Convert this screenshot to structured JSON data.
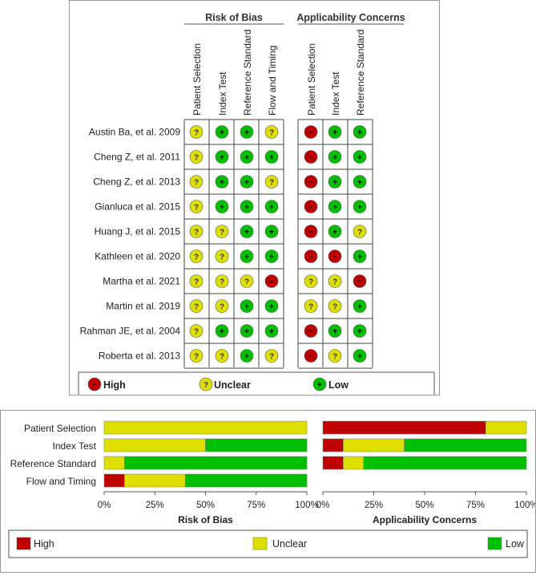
{
  "colors": {
    "high": "#c00000",
    "unclear": "#e0e000",
    "low": "#00c000",
    "grid": "#777777"
  },
  "symbols": {
    "high": "−",
    "unclear": "?",
    "low": "+"
  },
  "group_titles": [
    "Risk of Bias",
    "Applicability Concerns"
  ],
  "rob_columns": [
    "Patient Selection",
    "Index Test",
    "Reference Standard",
    "Flow and Timing"
  ],
  "ac_columns": [
    "Patient Selection",
    "Index Test",
    "Reference Standard"
  ],
  "studies": [
    {
      "name": "Austin Ba, et al. 2009",
      "rob": [
        "unclear",
        "low",
        "low",
        "unclear"
      ],
      "ac": [
        "high",
        "low",
        "low"
      ]
    },
    {
      "name": "Cheng Z, et al. 2011",
      "rob": [
        "unclear",
        "low",
        "low",
        "low"
      ],
      "ac": [
        "high",
        "low",
        "low"
      ]
    },
    {
      "name": "Cheng Z, et al. 2013",
      "rob": [
        "unclear",
        "low",
        "low",
        "unclear"
      ],
      "ac": [
        "high",
        "low",
        "low"
      ]
    },
    {
      "name": "Gianluca et al. 2015",
      "rob": [
        "unclear",
        "low",
        "low",
        "low"
      ],
      "ac": [
        "high",
        "low",
        "low"
      ]
    },
    {
      "name": "Huang J, et al. 2015",
      "rob": [
        "unclear",
        "unclear",
        "low",
        "low"
      ],
      "ac": [
        "high",
        "low",
        "unclear"
      ]
    },
    {
      "name": "Kathleen et al. 2020",
      "rob": [
        "unclear",
        "unclear",
        "low",
        "low"
      ],
      "ac": [
        "high",
        "high",
        "low"
      ]
    },
    {
      "name": "Martha et al. 2021",
      "rob": [
        "unclear",
        "unclear",
        "unclear",
        "high"
      ],
      "ac": [
        "unclear",
        "unclear",
        "high"
      ]
    },
    {
      "name": "Martin et al. 2019",
      "rob": [
        "unclear",
        "unclear",
        "low",
        "low"
      ],
      "ac": [
        "unclear",
        "unclear",
        "low"
      ]
    },
    {
      "name": "Rahman JE, et al. 2004",
      "rob": [
        "unclear",
        "low",
        "low",
        "low"
      ],
      "ac": [
        "high",
        "low",
        "low"
      ]
    },
    {
      "name": "Roberta et al. 2013",
      "rob": [
        "unclear",
        "unclear",
        "low",
        "unclear"
      ],
      "ac": [
        "high",
        "unclear",
        "low"
      ]
    }
  ],
  "legend": {
    "high": "High",
    "unclear": "Unclear",
    "low": "Low"
  },
  "chart_data": [
    {
      "type": "bar",
      "orientation": "horizontal-stacked",
      "title": "Risk of Bias",
      "categories": [
        "Patient Selection",
        "Index Test",
        "Reference Standard",
        "Flow and Timing"
      ],
      "series": [
        {
          "name": "High",
          "values": [
            0,
            0,
            0,
            10
          ]
        },
        {
          "name": "Unclear",
          "values": [
            100,
            50,
            10,
            30
          ]
        },
        {
          "name": "Low",
          "values": [
            0,
            50,
            90,
            60
          ]
        }
      ],
      "xlabel": "Risk of Bias",
      "xticks": [
        "0%",
        "25%",
        "50%",
        "75%",
        "100%"
      ],
      "xlim": [
        0,
        100
      ]
    },
    {
      "type": "bar",
      "orientation": "horizontal-stacked",
      "title": "Applicability Concerns",
      "categories": [
        "Patient Selection",
        "Index Test",
        "Reference Standard"
      ],
      "series": [
        {
          "name": "High",
          "values": [
            80,
            10,
            10
          ]
        },
        {
          "name": "Unclear",
          "values": [
            20,
            30,
            10
          ]
        },
        {
          "name": "Low",
          "values": [
            0,
            60,
            80
          ]
        }
      ],
      "xlabel": "Applicability Concerns",
      "xticks": [
        "0%",
        "25%",
        "50%",
        "75%",
        "100%"
      ],
      "xlim": [
        0,
        100
      ]
    }
  ]
}
